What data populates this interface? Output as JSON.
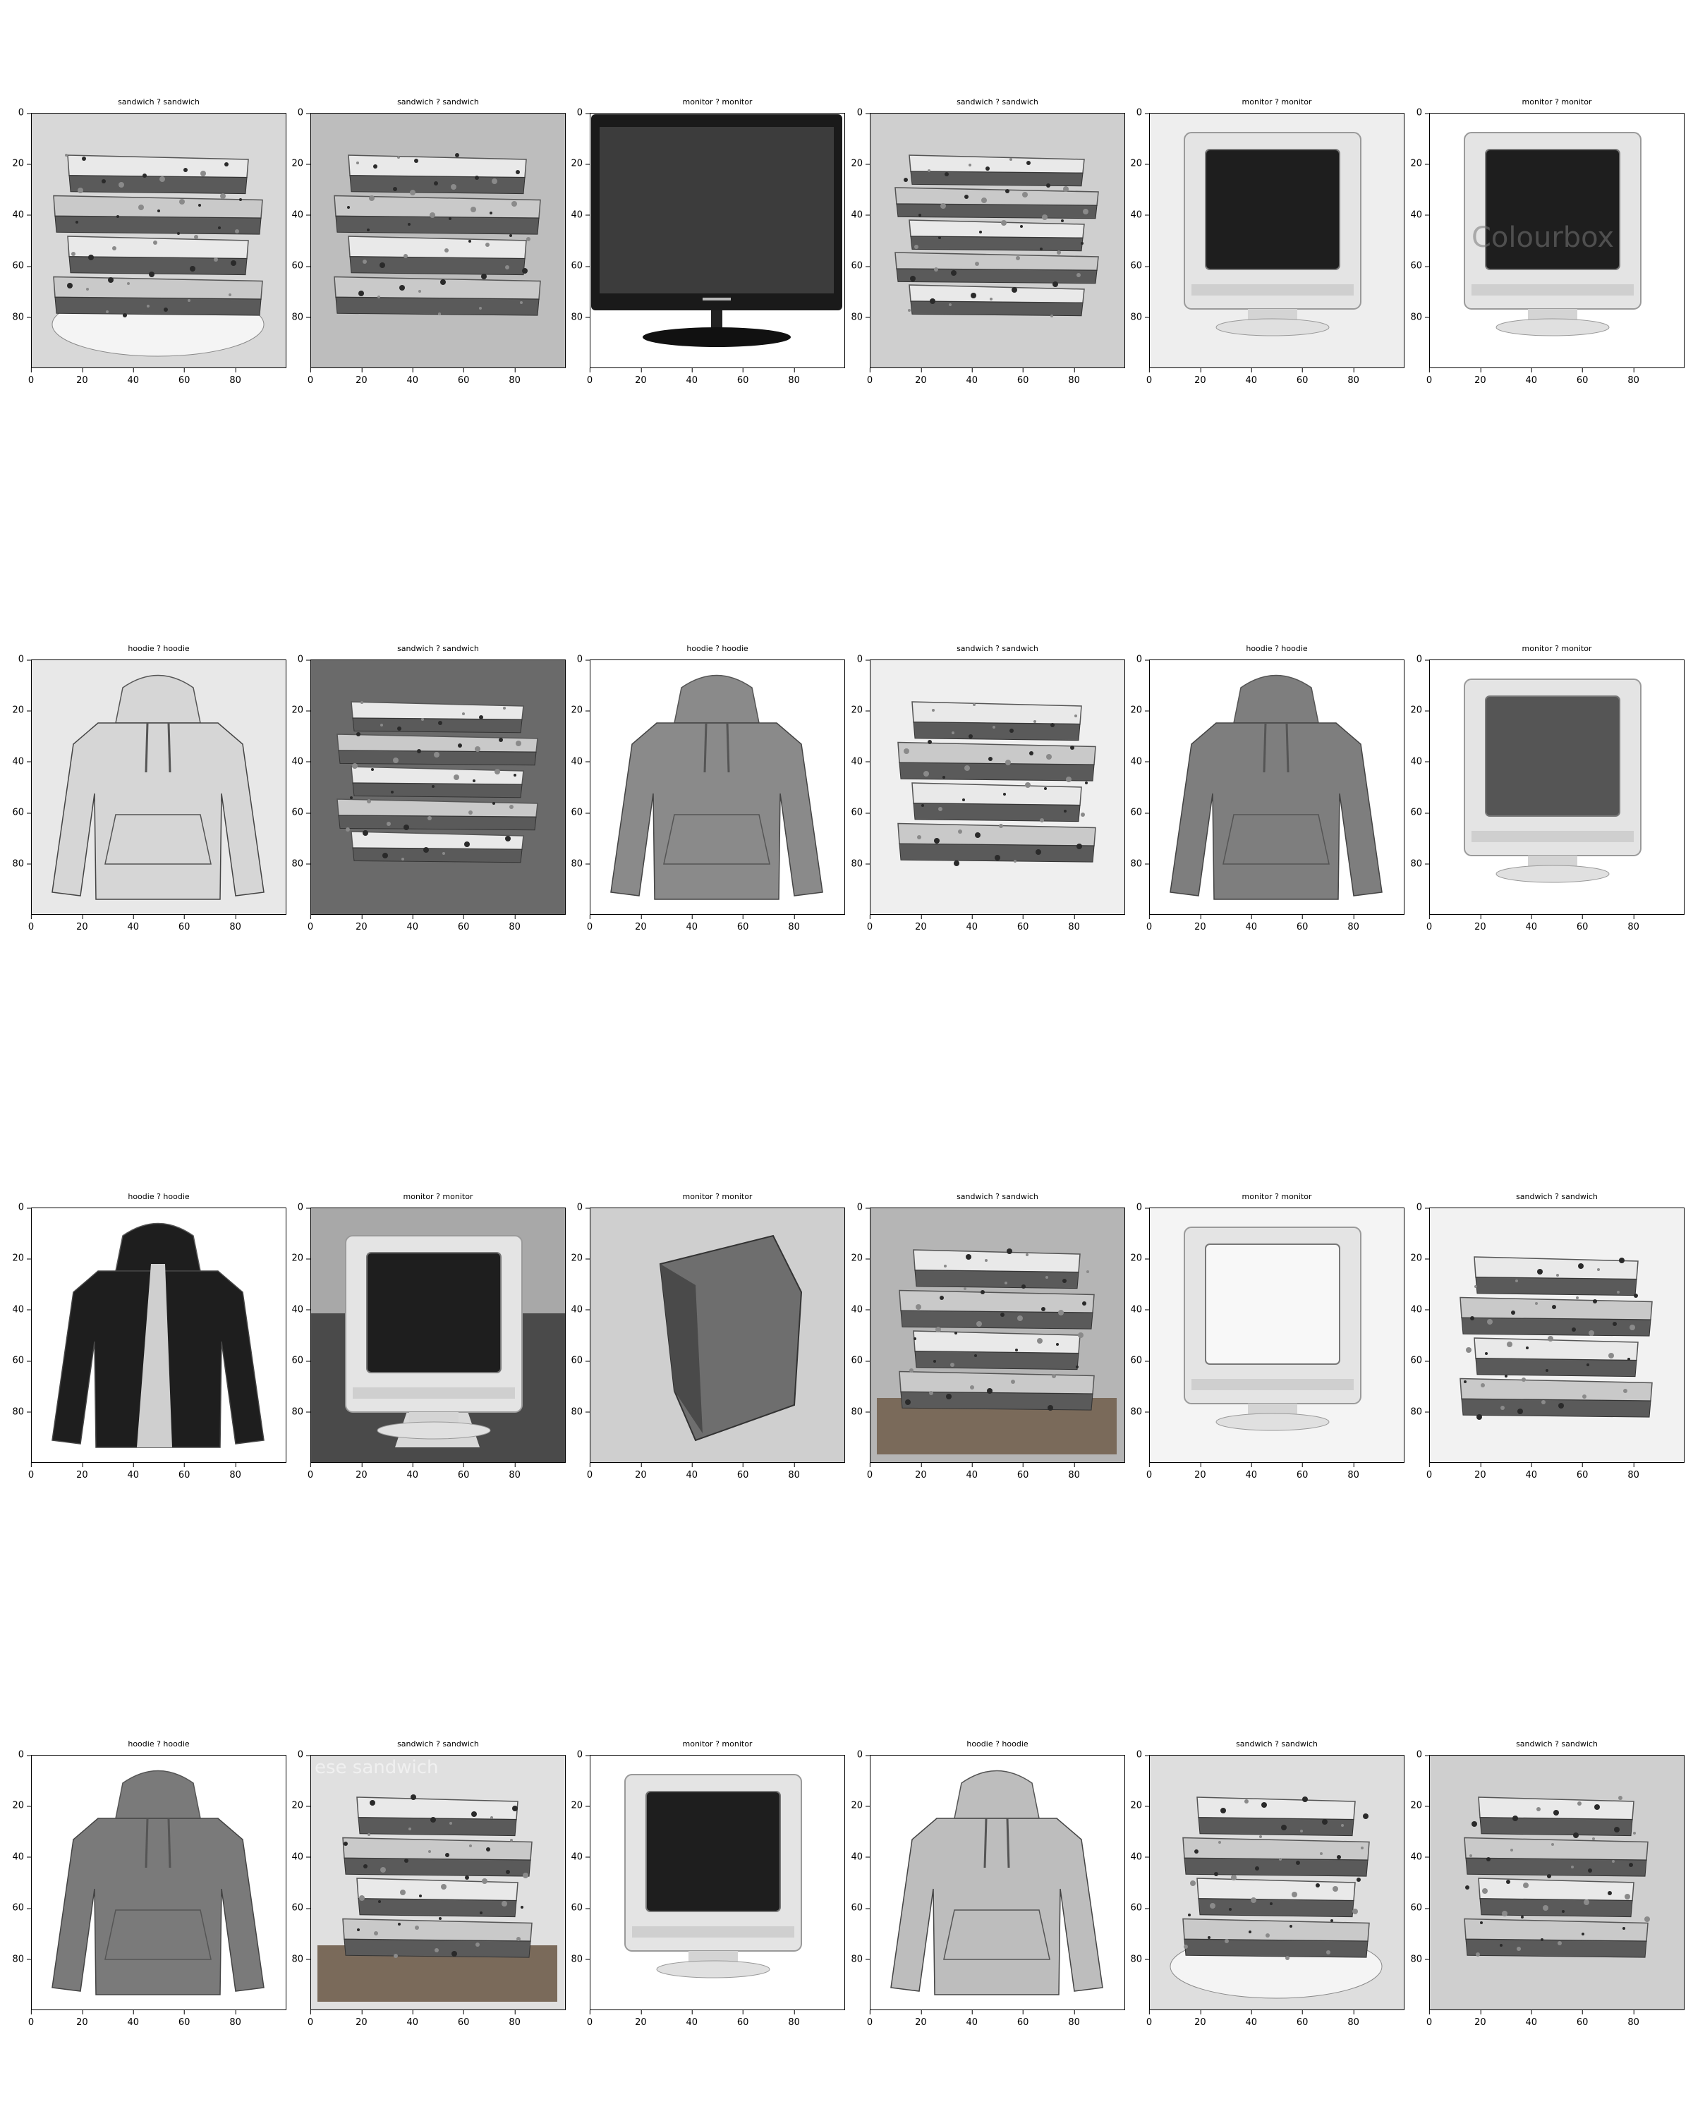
{
  "ticks": [
    "0",
    "20",
    "40",
    "60",
    "80"
  ],
  "panels": [
    {
      "title": "sandwich ? sandwich",
      "subject": "sandwich",
      "variant": 0
    },
    {
      "title": "sandwich ? sandwich",
      "subject": "sandwich",
      "variant": 1
    },
    {
      "title": "monitor ? monitor",
      "subject": "monitor-flat",
      "variant": 0
    },
    {
      "title": "sandwich ? sandwich",
      "subject": "sandwich",
      "variant": 2
    },
    {
      "title": "monitor ? monitor",
      "subject": "monitor-crt",
      "variant": 0
    },
    {
      "title": "monitor ? monitor",
      "subject": "monitor-crt",
      "variant": 1
    },
    {
      "title": "hoodie ? hoodie",
      "subject": "hoodie",
      "variant": 0
    },
    {
      "title": "sandwich ? sandwich",
      "subject": "sandwich",
      "variant": 3
    },
    {
      "title": "hoodie ? hoodie",
      "subject": "hoodie",
      "variant": 1
    },
    {
      "title": "sandwich ? sandwich",
      "subject": "sandwich",
      "variant": 4
    },
    {
      "title": "hoodie ? hoodie",
      "subject": "hoodie",
      "variant": 2
    },
    {
      "title": "monitor ? monitor",
      "subject": "monitor-crt",
      "variant": 2
    },
    {
      "title": "hoodie ? hoodie",
      "subject": "hoodie",
      "variant": 3
    },
    {
      "title": "monitor ? monitor",
      "subject": "monitor-crt",
      "variant": 3
    },
    {
      "title": "monitor ? monitor",
      "subject": "monitor-crt",
      "variant": 4
    },
    {
      "title": "sandwich ? sandwich",
      "subject": "sandwich",
      "variant": 5
    },
    {
      "title": "monitor ? monitor",
      "subject": "monitor-crt",
      "variant": 5
    },
    {
      "title": "sandwich ? sandwich",
      "subject": "sandwich",
      "variant": 6
    },
    {
      "title": "hoodie ? hoodie",
      "subject": "hoodie",
      "variant": 4
    },
    {
      "title": "sandwich ? sandwich",
      "subject": "sandwich",
      "variant": 7
    },
    {
      "title": "monitor ? monitor",
      "subject": "monitor-crt",
      "variant": 6
    },
    {
      "title": "hoodie ? hoodie",
      "subject": "hoodie",
      "variant": 5
    },
    {
      "title": "sandwich ? sandwich",
      "subject": "sandwich",
      "variant": 8
    },
    {
      "title": "sandwich ? sandwich",
      "subject": "sandwich",
      "variant": 9
    }
  ],
  "overlay_text": {
    "panel_5": "Colourbox",
    "panel_19": "ese sandwich"
  }
}
